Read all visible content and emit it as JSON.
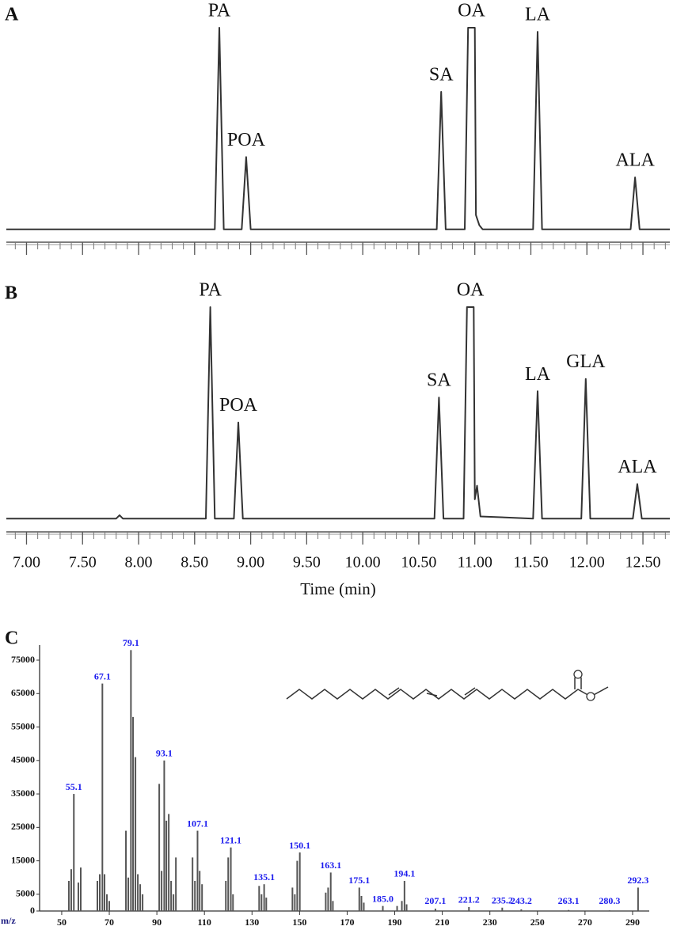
{
  "chart_data": [
    {
      "type": "line",
      "panel": "A",
      "x": [
        6.82,
        8.68,
        8.72,
        8.76,
        8.92,
        8.96,
        9.0,
        10.66,
        10.7,
        10.74,
        10.91,
        10.94,
        11.0,
        11.01,
        11.04,
        11.07,
        11.52,
        11.56,
        11.6,
        12.39,
        12.43,
        12.47,
        12.74
      ],
      "values": [
        1,
        1,
        100,
        1,
        1,
        36.5,
        1,
        1,
        68.5,
        1,
        1,
        100,
        100,
        8,
        3,
        1,
        1,
        98,
        1,
        1,
        26.5,
        1,
        1
      ],
      "color": "#333333",
      "xlim": [
        6.82,
        12.74
      ],
      "ylim": [
        -3,
        100
      ],
      "xticks": [
        7,
        7.5,
        8,
        8.5,
        9,
        9.5,
        10,
        10.5,
        11,
        11.5,
        12,
        12.5
      ],
      "xminorticks": [
        6.9,
        7,
        7.1,
        7.2,
        7.3,
        7.4,
        7.5,
        7.6,
        7.7,
        7.8,
        7.9,
        8,
        8.1,
        8.2,
        8.3,
        8.4,
        8.5,
        8.6,
        8.7,
        8.8,
        8.9,
        9,
        9.1,
        9.2,
        9.3,
        9.4,
        9.5,
        9.6,
        9.7,
        9.8,
        9.9,
        10,
        10.1,
        10.2,
        10.3,
        10.4,
        10.5,
        10.6,
        10.7,
        10.8,
        10.9,
        11,
        11.1,
        11.2,
        11.3,
        11.4,
        11.5,
        11.6,
        11.7,
        11.8,
        11.9,
        12,
        12.1,
        12.2,
        12.3,
        12.4,
        12.5,
        12.6,
        12.7
      ],
      "peak_labels": [
        {
          "text": "PA",
          "x": 8.72
        },
        {
          "text": "POA",
          "x": 8.96
        },
        {
          "text": "SA",
          "x": 10.7
        },
        {
          "text": "OA",
          "x": 10.97
        },
        {
          "text": "LA",
          "x": 11.56
        },
        {
          "text": "ALA",
          "x": 12.43
        }
      ]
    },
    {
      "type": "line",
      "panel": "B",
      "xlabel": "Time (min)",
      "x": [
        6.82,
        7.8,
        7.83,
        7.86,
        8.6,
        8.64,
        8.68,
        8.85,
        8.89,
        8.93,
        10.64,
        10.68,
        10.72,
        10.9,
        10.93,
        10.99,
        11.0,
        11.02,
        11.05,
        11.52,
        11.56,
        11.6,
        11.95,
        11.99,
        12.03,
        12.41,
        12.45,
        12.49,
        12.74
      ],
      "values": [
        1,
        1,
        2.6,
        1,
        1,
        100,
        1,
        1,
        46,
        1,
        1,
        57.7,
        1,
        1,
        100,
        100,
        10,
        16.4,
        2,
        1,
        60.6,
        1,
        1,
        66.4,
        1,
        1,
        17.2,
        1,
        1
      ],
      "color": "#333333",
      "xlim": [
        6.82,
        12.74
      ],
      "ylim": [
        -3,
        100
      ],
      "xticks": [
        {
          "value": 7,
          "label": "7.00"
        },
        {
          "value": 7.5,
          "label": "7.50"
        },
        {
          "value": 8,
          "label": "8.00"
        },
        {
          "value": 8.5,
          "label": "8.50"
        },
        {
          "value": 9,
          "label": "9.00"
        },
        {
          "value": 9.5,
          "label": "9.50"
        },
        {
          "value": 10,
          "label": "10.00"
        },
        {
          "value": 10.5,
          "label": "10.50"
        },
        {
          "value": 11,
          "label": "11.00"
        },
        {
          "value": 11.5,
          "label": "11.50"
        },
        {
          "value": 12,
          "label": "12.00"
        },
        {
          "value": 12.5,
          "label": "12.50"
        }
      ],
      "xminorticks": [
        6.9,
        7,
        7.1,
        7.2,
        7.3,
        7.4,
        7.5,
        7.6,
        7.7,
        7.8,
        7.9,
        8,
        8.1,
        8.2,
        8.3,
        8.4,
        8.5,
        8.6,
        8.7,
        8.8,
        8.9,
        9,
        9.1,
        9.2,
        9.3,
        9.4,
        9.5,
        9.6,
        9.7,
        9.8,
        9.9,
        10,
        10.1,
        10.2,
        10.3,
        10.4,
        10.5,
        10.6,
        10.7,
        10.8,
        10.9,
        11,
        11.1,
        11.2,
        11.3,
        11.4,
        11.5,
        11.6,
        11.7,
        11.8,
        11.9,
        12,
        12.1,
        12.2,
        12.3,
        12.4,
        12.5,
        12.6,
        12.7
      ],
      "peak_labels": [
        {
          "text": "PA",
          "x": 8.64
        },
        {
          "text": "POA",
          "x": 8.89
        },
        {
          "text": "SA",
          "x": 10.68
        },
        {
          "text": "OA",
          "x": 10.96
        },
        {
          "text": "LA",
          "x": 11.56
        },
        {
          "text": "GLA",
          "x": 11.99
        },
        {
          "text": "ALA",
          "x": 12.45
        }
      ]
    },
    {
      "type": "bar",
      "panel": "C",
      "xlabel": "m/z",
      "x": [
        53,
        54,
        55.1,
        57,
        58,
        65,
        66,
        67.1,
        68,
        69,
        70,
        77,
        78,
        79.1,
        80,
        81,
        82,
        83,
        84,
        91,
        92,
        93.1,
        94,
        95,
        96,
        97,
        98,
        105,
        106,
        107.1,
        108,
        109,
        119,
        120,
        121.1,
        122,
        133,
        134,
        135.1,
        136,
        147,
        148,
        149,
        150.1,
        161,
        162,
        163.1,
        164,
        175.1,
        176,
        177,
        185,
        191,
        193,
        194.1,
        195,
        207.1,
        221.2,
        235.2,
        243.2,
        263.1,
        280.3,
        292.3
      ],
      "values": [
        9000,
        12500,
        35000,
        8500,
        13000,
        9000,
        11000,
        68000,
        11000,
        5000,
        3000,
        24000,
        10000,
        78000,
        58000,
        46000,
        11000,
        8000,
        5000,
        38000,
        12000,
        45000,
        27000,
        29000,
        9000,
        5000,
        16000,
        16000,
        9000,
        24000,
        12000,
        8000,
        9000,
        16000,
        19000,
        5000,
        7500,
        5000,
        8000,
        4000,
        7000,
        5000,
        15000,
        17500,
        5500,
        7000,
        11500,
        3000,
        7000,
        4500,
        2500,
        1500,
        1500,
        3000,
        9000,
        2000,
        700,
        1200,
        1000,
        500,
        300,
        200,
        7000
      ],
      "x_labels": [
        null,
        null,
        "55.1",
        null,
        null,
        null,
        null,
        "67.1",
        null,
        null,
        null,
        null,
        null,
        "79.1",
        null,
        null,
        null,
        null,
        null,
        null,
        null,
        "93.1",
        null,
        null,
        null,
        null,
        null,
        null,
        null,
        "107.1",
        null,
        null,
        null,
        null,
        "121.1",
        null,
        null,
        null,
        "135.1",
        null,
        null,
        null,
        null,
        "150.1",
        null,
        null,
        "163.1",
        null,
        "175.1",
        null,
        null,
        "185.0",
        null,
        null,
        "194.1",
        null,
        "207.1",
        "221.2",
        "235.2",
        "243.2",
        "263.1",
        "280.3",
        "292.3"
      ],
      "color": "#555555",
      "label_color": "#1a1aee",
      "xlim": [
        40.7,
        297
      ],
      "ylim": [
        0,
        79500
      ],
      "xticks": [
        50,
        70,
        90,
        110,
        130,
        150,
        170,
        190,
        210,
        230,
        250,
        270,
        290
      ],
      "yticks": [
        0,
        5000,
        15000,
        25000,
        35000,
        45000,
        55000,
        65000,
        75000
      ]
    }
  ]
}
